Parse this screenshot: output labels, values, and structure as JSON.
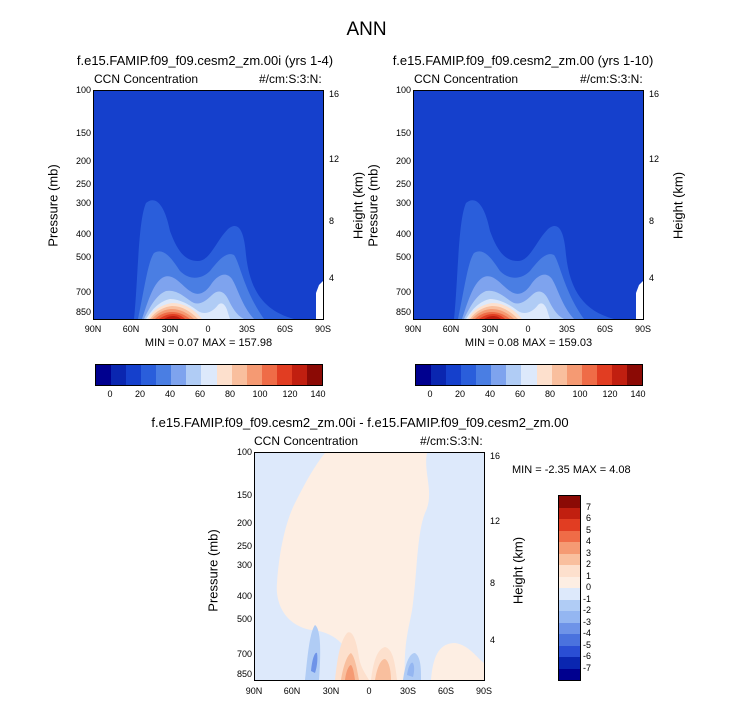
{
  "title": "ANN",
  "panels": [
    {
      "id": "p1",
      "title": "f.e15.FAMIP.f09_f09.cesm2_zm.00i (yrs 1-4)",
      "left_label": "CCN Concentration",
      "right_label": "#/cm:S:3:N:",
      "ylabel": "Pressure (mb)",
      "ylabel_right": "Height (km)",
      "minmax": "MIN =  0.07  MAX = 157.98"
    },
    {
      "id": "p2",
      "title": "f.e15.FAMIP.f09_f09.cesm2_zm.00 (yrs 1-10)",
      "left_label": "CCN Concentration",
      "right_label": "#/cm:S:3:N:",
      "ylabel": "Pressure (mb)",
      "ylabel_right": "Height (km)",
      "minmax": "MIN =  0.08  MAX = 159.03"
    },
    {
      "id": "p3",
      "title": "f.e15.FAMIP.f09_f09.cesm2_zm.00i - f.e15.FAMIP.f09_f09.cesm2_zm.00",
      "left_label": "CCN Concentration",
      "right_label": "#/cm:S:3:N:",
      "ylabel": "Pressure (mb)",
      "ylabel_right": "Height (km)",
      "minmax": "MIN = -2.35  MAX =  4.08"
    }
  ],
  "chart_data": [
    {
      "type": "heatmap",
      "title": "f.e15.FAMIP.f09_f09.cesm2_zm.00i (yrs 1-4)",
      "x_ticks": [
        "90N",
        "60N",
        "30N",
        "0",
        "30S",
        "60S",
        "90S"
      ],
      "y_ticks": [
        "100",
        "150",
        "200",
        "250",
        "300",
        "400",
        "500",
        "700",
        "850"
      ],
      "y_ticks_right": [
        "16",
        "12",
        "8",
        "4"
      ],
      "xlabel": "",
      "ylabel": "Pressure (mb)",
      "ylabel_right": "Height (km)",
      "min": 0.07,
      "max": 157.98,
      "colorbar_ticks": [
        "0",
        "20",
        "40",
        "60",
        "80",
        "100",
        "120",
        "140"
      ]
    },
    {
      "type": "heatmap",
      "title": "f.e15.FAMIP.f09_f09.cesm2_zm.00 (yrs 1-10)",
      "x_ticks": [
        "90N",
        "60N",
        "30N",
        "0",
        "30S",
        "60S",
        "90S"
      ],
      "y_ticks": [
        "100",
        "150",
        "200",
        "250",
        "300",
        "400",
        "500",
        "700",
        "850"
      ],
      "y_ticks_right": [
        "16",
        "12",
        "8",
        "4"
      ],
      "xlabel": "",
      "ylabel": "Pressure (mb)",
      "ylabel_right": "Height (km)",
      "min": 0.08,
      "max": 159.03,
      "colorbar_ticks": [
        "0",
        "20",
        "40",
        "60",
        "80",
        "100",
        "120",
        "140"
      ]
    },
    {
      "type": "heatmap",
      "title": "f.e15.FAMIP.f09_f09.cesm2_zm.00i - f.e15.FAMIP.f09_f09.cesm2_zm.00",
      "x_ticks": [
        "90N",
        "60N",
        "30N",
        "0",
        "30S",
        "60S",
        "90S"
      ],
      "y_ticks": [
        "100",
        "150",
        "200",
        "250",
        "300",
        "400",
        "500",
        "700",
        "850"
      ],
      "y_ticks_right": [
        "16",
        "12",
        "8",
        "4"
      ],
      "xlabel": "",
      "ylabel": "Pressure (mb)",
      "ylabel_right": "Height (km)",
      "min": -2.35,
      "max": 4.08,
      "colorbar_ticks": [
        "7",
        "6",
        "5",
        "4",
        "3",
        "2",
        "1",
        "0",
        "-1",
        "-2",
        "-3",
        "-4",
        "-5",
        "-6",
        "-7"
      ]
    }
  ],
  "colors": {
    "abs_scale": [
      "#00008f",
      "#0a26b0",
      "#1540cc",
      "#2a5edb",
      "#4a7ee3",
      "#7ea3ee",
      "#b0ccf5",
      "#dde9fb",
      "#fde0cd",
      "#f9bf9e",
      "#f59a73",
      "#ef6c47",
      "#e13d22",
      "#c11f10",
      "#8b0a05"
    ],
    "diff_scale": [
      "#8b0a05",
      "#c11f10",
      "#e13d22",
      "#ef6c47",
      "#f59a73",
      "#f9bf9e",
      "#fde0cd",
      "#fdeee3",
      "#dde9fb",
      "#b0ccf5",
      "#94b6f1",
      "#6e93e8",
      "#4a72de",
      "#2a4ed4",
      "#0a26b0",
      "#00008f"
    ]
  }
}
